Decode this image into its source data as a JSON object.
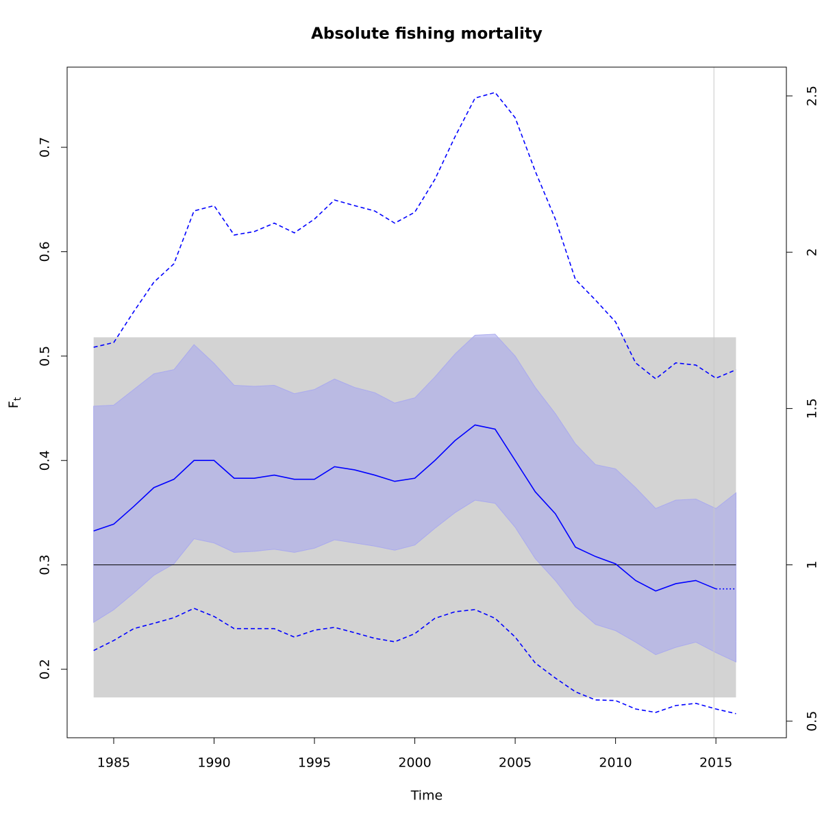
{
  "chart_data": {
    "type": "line",
    "title": "Absolute fishing mortality",
    "xlabel": "Time",
    "ylabel": "F",
    "ylabel_sub": "t",
    "xlim": [
      1982.68,
      2018.51
    ],
    "xticks": [
      1985,
      1990,
      1995,
      2000,
      2005,
      2010,
      2015
    ],
    "ylim": [
      0.1344,
      0.7768
    ],
    "yticks": [
      0.2,
      0.3,
      0.4,
      0.5,
      0.6,
      0.7
    ],
    "y2lim": [
      0.447,
      2.592
    ],
    "y2ticks": [
      0.5,
      1,
      1.5,
      2,
      2.5
    ],
    "x": [
      1984,
      1985,
      1986,
      1987,
      1988,
      1989,
      1990,
      1991,
      1992,
      1993,
      1994,
      1995,
      1996,
      1997,
      1998,
      1999,
      2000,
      2001,
      2002,
      2003,
      2004,
      2005,
      2006,
      2007,
      2008,
      2009,
      2010,
      2011,
      2012,
      2013,
      2014,
      2015,
      2016
    ],
    "ref_band": {
      "x": [
        1984,
        2016
      ],
      "y": [
        0.173,
        0.518
      ],
      "color": "#d3d3d3"
    },
    "hline": {
      "value": 0.3,
      "color": "#000000"
    },
    "vline": {
      "value": 2014.9,
      "color": "#c8c8c8"
    },
    "band": {
      "color": "#aaaaee",
      "upper": [
        0.452,
        0.453,
        0.468,
        0.483,
        0.487,
        0.511,
        0.493,
        0.472,
        0.471,
        0.472,
        0.464,
        0.468,
        0.478,
        0.47,
        0.465,
        0.455,
        0.46,
        0.48,
        0.502,
        0.52,
        0.521,
        0.5,
        0.47,
        0.445,
        0.416,
        0.396,
        0.392,
        0.374,
        0.354,
        0.362,
        0.363,
        0.354,
        0.369
      ],
      "lower": [
        0.245,
        0.257,
        0.273,
        0.29,
        0.301,
        0.325,
        0.321,
        0.312,
        0.313,
        0.315,
        0.312,
        0.316,
        0.324,
        0.321,
        0.318,
        0.314,
        0.319,
        0.335,
        0.35,
        0.362,
        0.359,
        0.336,
        0.306,
        0.285,
        0.26,
        0.243,
        0.237,
        0.226,
        0.214,
        0.221,
        0.226,
        0.216,
        0.207
      ]
    },
    "series": [
      {
        "color": "#0000ff",
        "dash": "solid",
        "values": [
          0.3325,
          0.339,
          0.356,
          0.374,
          0.382,
          0.4,
          0.4,
          0.383,
          0.383,
          0.386,
          0.382,
          0.382,
          0.394,
          0.391,
          0.386,
          0.38,
          0.383,
          0.4,
          0.419,
          0.434,
          0.43,
          0.4,
          0.37,
          0.349,
          0.317,
          0.308,
          0.301,
          0.285,
          0.275,
          0.282,
          0.285,
          0.277,
          null
        ]
      },
      {
        "color": "#0000ff",
        "dash": "dotted",
        "values": [
          null,
          null,
          null,
          null,
          null,
          null,
          null,
          null,
          null,
          null,
          null,
          null,
          null,
          null,
          null,
          null,
          null,
          null,
          null,
          null,
          null,
          null,
          null,
          null,
          null,
          null,
          null,
          null,
          null,
          null,
          null,
          0.277,
          0.277
        ]
      },
      {
        "color": "#0000ff",
        "dash": "dashed",
        "axis": "y2",
        "values": [
          1.696,
          1.711,
          1.81,
          1.904,
          1.963,
          2.132,
          2.149,
          2.055,
          2.066,
          2.093,
          2.062,
          2.106,
          2.167,
          2.149,
          2.132,
          2.093,
          2.128,
          2.233,
          2.369,
          2.493,
          2.511,
          2.43,
          2.259,
          2.106,
          1.913,
          1.847,
          1.777,
          1.646,
          1.595,
          1.646,
          1.639,
          1.597,
          1.624
        ]
      },
      {
        "color": "#0000ff",
        "dash": "dashed",
        "axis": "y2",
        "values": [
          0.726,
          0.758,
          0.796,
          0.813,
          0.831,
          0.861,
          0.835,
          0.796,
          0.796,
          0.796,
          0.769,
          0.791,
          0.8,
          0.783,
          0.765,
          0.754,
          0.78,
          0.829,
          0.85,
          0.857,
          0.829,
          0.769,
          0.686,
          0.638,
          0.594,
          0.568,
          0.566,
          0.539,
          0.528,
          0.55,
          0.557,
          0.539,
          0.524
        ]
      }
    ]
  }
}
